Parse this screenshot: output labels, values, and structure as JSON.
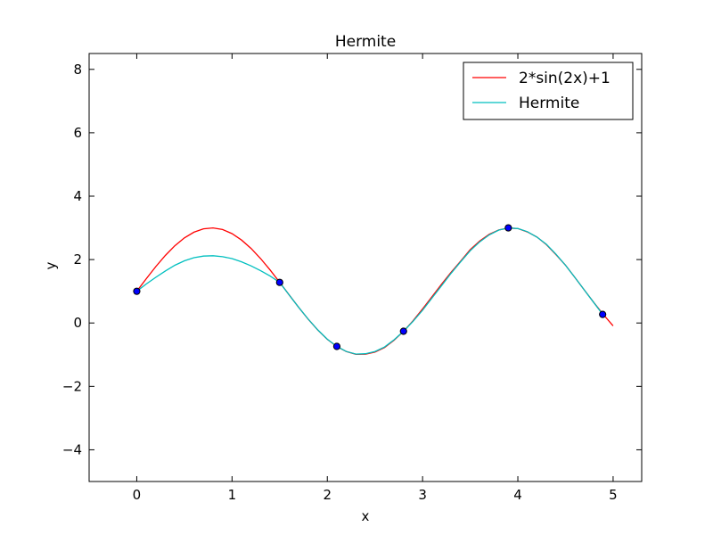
{
  "chart_data": {
    "type": "line",
    "title": "Hermite",
    "xlabel": "x",
    "ylabel": "y",
    "xlim": [
      -0.5,
      5.3
    ],
    "ylim": [
      -5,
      8.5
    ],
    "xticks": [
      0,
      1,
      2,
      3,
      4,
      5
    ],
    "yticks": [
      -4,
      -2,
      0,
      2,
      4,
      6,
      8
    ],
    "xtick_labels": [
      "0",
      "1",
      "2",
      "3",
      "4",
      "5"
    ],
    "ytick_labels": [
      "−4",
      "−2",
      "0",
      "2",
      "4",
      "6",
      "8"
    ],
    "grid": false,
    "legend_position": "top-right",
    "series": [
      {
        "name": "2*sin(2x)+1",
        "color": "#ff0000",
        "x": [
          0,
          0.1,
          0.2,
          0.3,
          0.4,
          0.5,
          0.6,
          0.7,
          0.8,
          0.9,
          1.0,
          1.1,
          1.2,
          1.3,
          1.4,
          1.5,
          1.6,
          1.7,
          1.8,
          1.9,
          2.0,
          2.1,
          2.2,
          2.3,
          2.4,
          2.5,
          2.6,
          2.7,
          2.8,
          2.9,
          3.0,
          3.1,
          3.2,
          3.3,
          3.4,
          3.5,
          3.6,
          3.7,
          3.8,
          3.9,
          4.0,
          4.1,
          4.2,
          4.3,
          4.4,
          4.5,
          4.6,
          4.7,
          4.8,
          4.9,
          5.0
        ],
        "y": [
          1.0,
          1.397,
          1.779,
          2.129,
          2.435,
          2.683,
          2.864,
          2.971,
          3.0,
          2.947,
          2.819,
          2.617,
          2.351,
          2.031,
          1.67,
          1.282,
          0.883,
          0.489,
          0.116,
          -0.223,
          -0.514,
          -0.743,
          -0.902,
          -0.987,
          -0.983,
          -0.918,
          -0.776,
          -0.544,
          -0.262,
          0.069,
          0.441,
          0.832,
          1.223,
          1.601,
          1.953,
          2.315,
          2.587,
          2.798,
          2.935,
          2.997,
          2.979,
          2.873,
          2.711,
          2.471,
          2.156,
          1.824,
          1.43,
          1.03,
          0.634,
          0.258,
          -0.088
        ]
      },
      {
        "name": "Hermite",
        "color": "#00bfbf",
        "x": [
          0,
          0.1,
          0.2,
          0.3,
          0.4,
          0.5,
          0.6,
          0.7,
          0.8,
          0.9,
          1.0,
          1.1,
          1.2,
          1.3,
          1.4,
          1.5,
          1.6,
          1.7,
          1.8,
          1.9,
          2.0,
          2.1,
          2.2,
          2.3,
          2.4,
          2.5,
          2.6,
          2.7,
          2.8,
          2.9,
          3.0,
          3.1,
          3.2,
          3.3,
          3.4,
          3.5,
          3.6,
          3.7,
          3.8,
          3.9,
          4.0,
          4.1,
          4.2,
          4.3,
          4.4,
          4.5,
          4.6,
          4.7,
          4.8,
          4.89
        ],
        "y": [
          1.0,
          1.23,
          1.44,
          1.64,
          1.82,
          1.96,
          2.06,
          2.11,
          2.12,
          2.09,
          2.03,
          1.93,
          1.8,
          1.65,
          1.48,
          1.28,
          0.88,
          0.49,
          0.12,
          -0.22,
          -0.51,
          -0.74,
          -0.9,
          -0.98,
          -0.97,
          -0.9,
          -0.76,
          -0.53,
          -0.26,
          0.05,
          0.4,
          0.79,
          1.18,
          1.57,
          1.93,
          2.28,
          2.56,
          2.78,
          2.93,
          3.0,
          2.98,
          2.88,
          2.71,
          2.48,
          2.17,
          1.82,
          1.43,
          1.03,
          0.63,
          0.27
        ]
      }
    ],
    "points": {
      "fill": "#0000ff",
      "x": [
        0,
        1.5,
        2.1,
        2.8,
        3.9,
        4.89
      ],
      "y": [
        1.0,
        1.28,
        -0.74,
        -0.26,
        3.0,
        0.27
      ]
    }
  }
}
